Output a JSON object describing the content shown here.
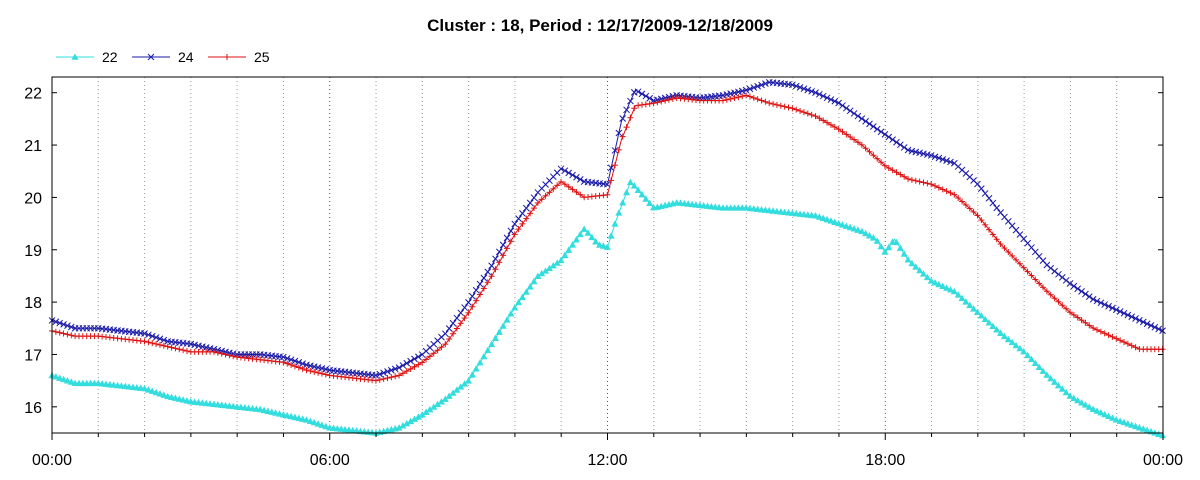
{
  "chart_data": {
    "type": "line",
    "title": "Cluster : 18, Period : 12/17/2009-12/18/2009",
    "xlabel": "",
    "ylabel": "",
    "x_unit": "hours",
    "xlim": [
      0,
      24
    ],
    "ylim": [
      15.5,
      22.3
    ],
    "x_ticks": [
      {
        "value": 0,
        "label": "00:00"
      },
      {
        "value": 6,
        "label": "06:00"
      },
      {
        "value": 12,
        "label": "12:00"
      },
      {
        "value": 18,
        "label": "18:00"
      },
      {
        "value": 24,
        "label": "00:00"
      }
    ],
    "y_ticks": [
      16,
      17,
      18,
      19,
      20,
      21,
      22
    ],
    "grid": "vertical dotted at each hour",
    "legend": {
      "position": "top-left"
    },
    "series": [
      {
        "name": "22",
        "color": "#33dddd",
        "marker": "triangle",
        "x": [
          0,
          0.5,
          1,
          1.5,
          2,
          2.5,
          3,
          3.5,
          4,
          4.5,
          5,
          5.5,
          6,
          6.5,
          7,
          7.5,
          8,
          8.5,
          9,
          9.5,
          10,
          10.5,
          11,
          11.5,
          11.8,
          12,
          12.2,
          12.5,
          13,
          13.5,
          14,
          14.5,
          15,
          15.5,
          16,
          16.5,
          17,
          17.5,
          17.8,
          18,
          18.2,
          18.5,
          19,
          19.5,
          20,
          20.5,
          21,
          21.5,
          22,
          22.5,
          23,
          23.5,
          24
        ],
        "values": [
          16.6,
          16.45,
          16.45,
          16.4,
          16.35,
          16.2,
          16.1,
          16.05,
          16.0,
          15.95,
          15.85,
          15.75,
          15.6,
          15.55,
          15.5,
          15.6,
          15.85,
          16.15,
          16.5,
          17.2,
          17.9,
          18.5,
          18.8,
          19.4,
          19.1,
          19.05,
          19.6,
          20.3,
          19.8,
          19.9,
          19.85,
          19.8,
          19.8,
          19.75,
          19.7,
          19.65,
          19.5,
          19.35,
          19.2,
          18.95,
          19.2,
          18.8,
          18.4,
          18.2,
          17.8,
          17.4,
          17.05,
          16.6,
          16.2,
          15.95,
          15.75,
          15.6,
          15.45
        ]
      },
      {
        "name": "24",
        "color": "#1a1aa8",
        "marker": "x",
        "x": [
          0,
          0.5,
          1,
          1.5,
          2,
          2.5,
          3,
          3.5,
          4,
          4.5,
          5,
          5.5,
          6,
          6.5,
          7,
          7.5,
          8,
          8.5,
          9,
          9.5,
          10,
          10.5,
          11,
          11.5,
          12,
          12.3,
          12.6,
          13,
          13.5,
          14,
          14.5,
          15,
          15.5,
          16,
          16.5,
          17,
          17.5,
          18,
          18.5,
          19,
          19.5,
          20,
          20.5,
          21,
          21.5,
          22,
          22.5,
          23,
          23.5,
          24
        ],
        "values": [
          17.65,
          17.5,
          17.5,
          17.45,
          17.4,
          17.25,
          17.2,
          17.1,
          17.0,
          17.0,
          16.95,
          16.8,
          16.7,
          16.65,
          16.6,
          16.75,
          17.0,
          17.4,
          18.0,
          18.7,
          19.5,
          20.1,
          20.55,
          20.3,
          20.25,
          21.45,
          22.05,
          21.85,
          21.95,
          21.9,
          21.95,
          22.05,
          22.2,
          22.15,
          22.0,
          21.8,
          21.5,
          21.2,
          20.9,
          20.8,
          20.65,
          20.25,
          19.7,
          19.2,
          18.7,
          18.35,
          18.05,
          17.85,
          17.65,
          17.45
        ]
      },
      {
        "name": "25",
        "color": "#dd1111",
        "marker": "+",
        "x": [
          0,
          0.5,
          1,
          1.5,
          2,
          2.5,
          3,
          3.5,
          4,
          4.5,
          5,
          5.5,
          6,
          6.5,
          7,
          7.5,
          8,
          8.5,
          9,
          9.5,
          10,
          10.5,
          11,
          11.5,
          12,
          12.3,
          12.6,
          13,
          13.5,
          14,
          14.5,
          15,
          15.5,
          16,
          16.5,
          17,
          17.5,
          18,
          18.5,
          19,
          19.5,
          20,
          20.5,
          21,
          21.5,
          22,
          22.5,
          23,
          23.5,
          24
        ],
        "values": [
          17.45,
          17.35,
          17.35,
          17.3,
          17.25,
          17.15,
          17.05,
          17.05,
          16.95,
          16.9,
          16.85,
          16.7,
          16.6,
          16.55,
          16.5,
          16.6,
          16.85,
          17.2,
          17.8,
          18.5,
          19.3,
          19.9,
          20.3,
          20.0,
          20.05,
          21.1,
          21.75,
          21.8,
          21.9,
          21.85,
          21.85,
          21.95,
          21.8,
          21.7,
          21.55,
          21.3,
          21.0,
          20.6,
          20.35,
          20.25,
          20.05,
          19.65,
          19.1,
          18.65,
          18.2,
          17.8,
          17.5,
          17.3,
          17.1,
          17.1
        ]
      }
    ]
  }
}
